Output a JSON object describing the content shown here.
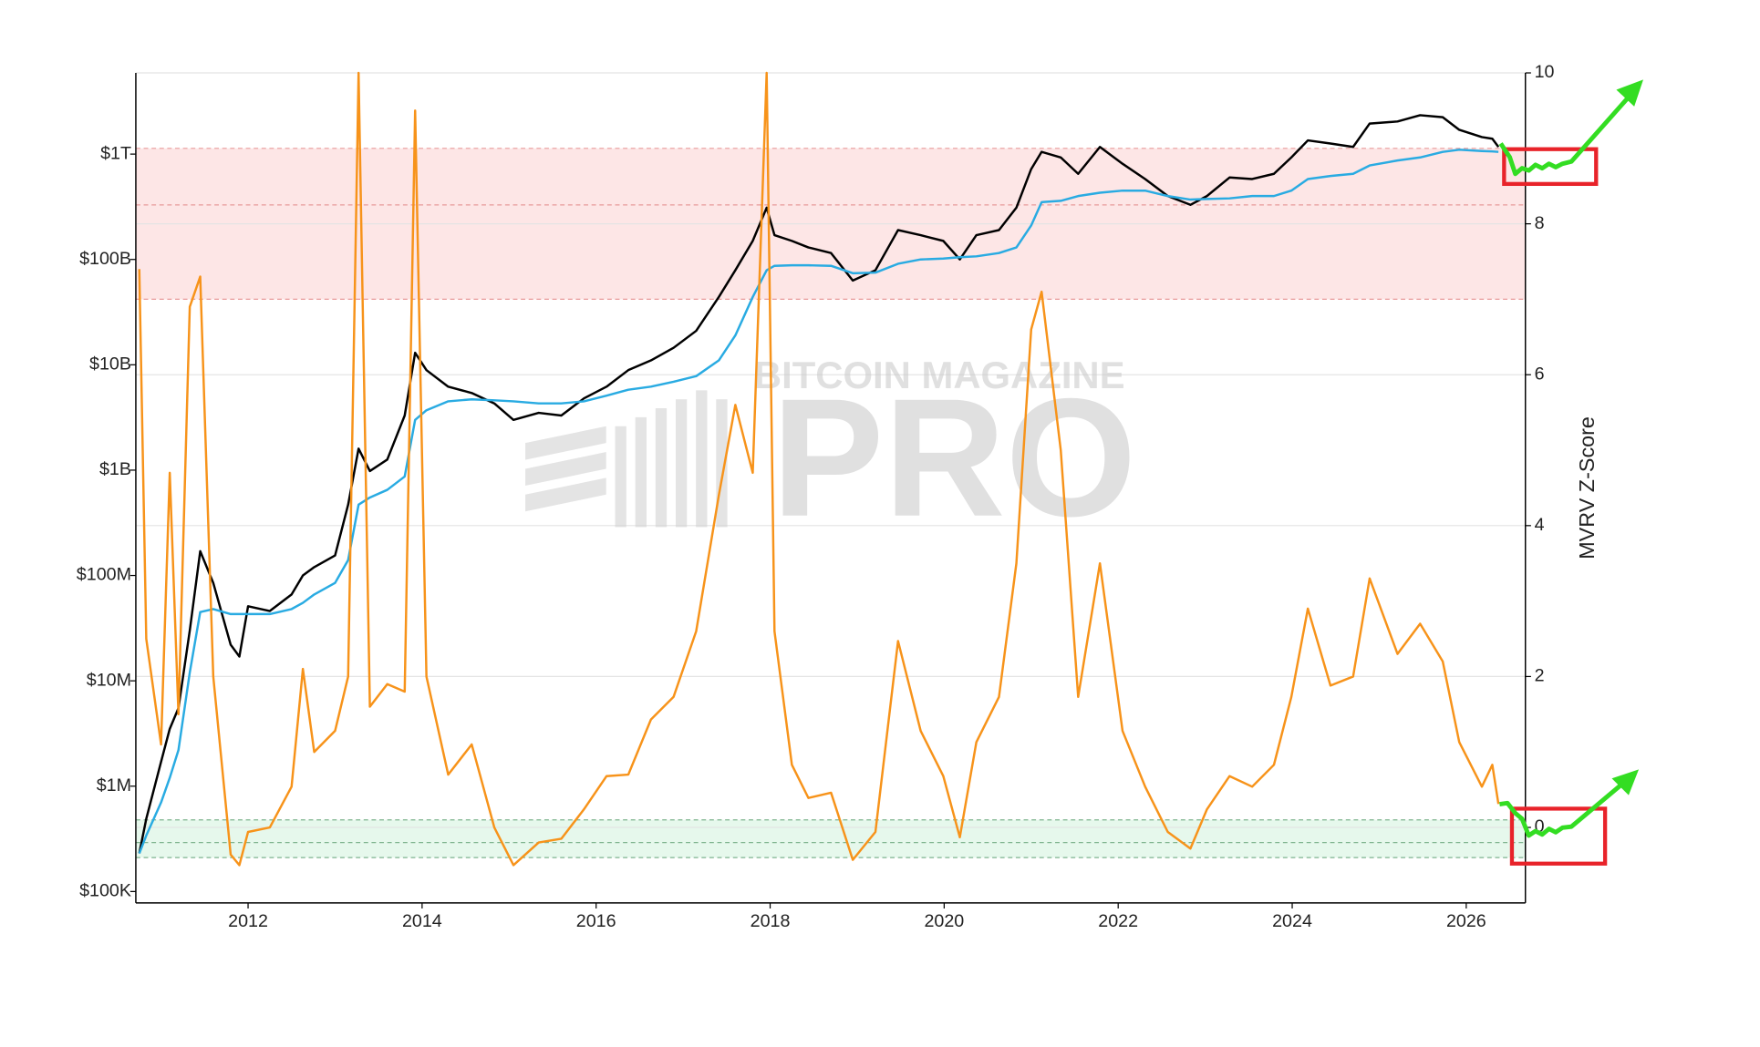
{
  "chart_data": {
    "type": "line",
    "y2_label": "MVRV Z-Score",
    "watermark": [
      "BITCOIN MAGAZINE",
      "PRO"
    ],
    "log_y": true,
    "grid": true,
    "x": [
      2010.75,
      2010.83,
      2011.0,
      2011.1,
      2011.2,
      2011.33,
      2011.45,
      2011.6,
      2011.8,
      2011.9,
      2012.0,
      2012.25,
      2012.5,
      2012.63,
      2012.76,
      2013.0,
      2013.15,
      2013.27,
      2013.4,
      2013.6,
      2013.8,
      2013.92,
      2014.05,
      2014.3,
      2014.57,
      2014.83,
      2015.05,
      2015.34,
      2015.6,
      2015.86,
      2016.12,
      2016.37,
      2016.63,
      2016.89,
      2017.15,
      2017.41,
      2017.6,
      2017.8,
      2017.96,
      2018.05,
      2018.25,
      2018.44,
      2018.7,
      2018.95,
      2019.21,
      2019.47,
      2019.73,
      2019.99,
      2020.18,
      2020.37,
      2020.63,
      2020.83,
      2021.0,
      2021.12,
      2021.34,
      2021.54,
      2021.79,
      2022.05,
      2022.31,
      2022.57,
      2022.83,
      2023.02,
      2023.28,
      2023.54,
      2023.79,
      2023.99,
      2024.18,
      2024.44,
      2024.7,
      2024.89,
      2025.21,
      2025.47,
      2025.73,
      2025.92,
      2026.18,
      2026.3,
      2026.37
    ],
    "series": [
      {
        "color": "#000000",
        "axis": "y",
        "values": [
          230000.0,
          490000.0,
          1700000.0,
          3500000.0,
          5500000.0,
          30000000.0,
          170000000.0,
          85000000.0,
          22000000.0,
          17000000.0,
          51000000.0,
          46000000.0,
          66000000.0,
          100000000.0,
          120000000.0,
          155000000.0,
          470000000.0,
          1600000000.0,
          980000000.0,
          1260000000.0,
          3300000000.0,
          13000000000.0,
          8900000000.0,
          6200000000.0,
          5400000000.0,
          4300000000.0,
          3000000000.0,
          3500000000.0,
          3300000000.0,
          4800000000.0,
          6200000000.0,
          8900000000.0,
          11000000000.0,
          14500000000.0,
          21000000000.0,
          44000000000.0,
          79000000000.0,
          150000000000.0,
          310000000000.0,
          170000000000.0,
          150000000000.0,
          130000000000.0,
          115000000000.0,
          63000000000.0,
          79000000000.0,
          190000000000.0,
          170000000000.0,
          150000000000.0,
          100000000000.0,
          170000000000.0,
          190000000000.0,
          310000000000.0,
          720000000000.0,
          1050000000000.0,
          930000000000.0,
          650000000000.0,
          1170000000000.0,
          810000000000.0,
          580000000000.0,
          400000000000.0,
          330000000000.0,
          400000000000.0,
          600000000000.0,
          580000000000.0,
          650000000000.0,
          930000000000.0,
          1350000000000.0,
          1260000000000.0,
          1170000000000.0,
          1950000000000.0,
          2040000000000.0,
          2340000000000.0,
          2240000000000.0,
          1700000000000.0,
          1450000000000.0,
          1400000000000.0,
          1170000000000.0
        ]
      },
      {
        "color": "#29abe2",
        "axis": "y",
        "values": [
          230000.0,
          340000.0,
          700000.0,
          1200000.0,
          2200000.0,
          12000000.0,
          45000000.0,
          48000000.0,
          43000000.0,
          43000000.0,
          43000000.0,
          43000000.0,
          48000000.0,
          55000000.0,
          66000000.0,
          85000000.0,
          140000000.0,
          470000000.0,
          550000000.0,
          650000000.0,
          870000000.0,
          3000000000.0,
          3700000000.0,
          4500000000.0,
          4700000000.0,
          4600000000.0,
          4500000000.0,
          4300000000.0,
          4300000000.0,
          4500000000.0,
          5100000000.0,
          5800000000.0,
          6200000000.0,
          6900000000.0,
          7800000000.0,
          11000000000.0,
          19000000000.0,
          44000000000.0,
          79000000000.0,
          87000000000.0,
          88000000000.0,
          88000000000.0,
          87000000000.0,
          74000000000.0,
          75000000000.0,
          91000000000.0,
          100000000000.0,
          102000000000.0,
          105000000000.0,
          107000000000.0,
          115000000000.0,
          130000000000.0,
          210000000000.0,
          350000000000.0,
          360000000000.0,
          400000000000.0,
          430000000000.0,
          450000000000.0,
          450000000000.0,
          400000000000.0,
          370000000000.0,
          375000000000.0,
          380000000000.0,
          400000000000.0,
          400000000000.0,
          450000000000.0,
          580000000000.0,
          620000000000.0,
          650000000000.0,
          780000000000.0,
          870000000000.0,
          930000000000.0,
          1050000000000.0,
          1100000000000.0,
          1070000000000.0,
          1060000000000.0,
          1050000000000.0
        ]
      },
      {
        "color": "#f7931a",
        "axis": "y2",
        "values": [
          7.4,
          2.5,
          1.1,
          4.7,
          1.5,
          6.9,
          7.3,
          2.0,
          -0.36,
          -0.5,
          -0.06,
          0.0,
          0.54,
          2.1,
          1.0,
          1.28,
          2.0,
          10.0,
          1.6,
          1.9,
          1.8,
          9.5,
          2.0,
          0.7,
          1.1,
          0.0,
          -0.5,
          -0.2,
          -0.15,
          0.24,
          0.68,
          0.7,
          1.43,
          1.73,
          2.6,
          4.4,
          5.6,
          4.7,
          10.0,
          2.6,
          0.83,
          0.39,
          0.46,
          -0.43,
          -0.06,
          2.47,
          1.28,
          0.68,
          -0.13,
          1.13,
          1.73,
          3.5,
          6.6,
          7.1,
          5.0,
          1.73,
          3.5,
          1.28,
          0.54,
          -0.06,
          -0.28,
          0.24,
          0.68,
          0.54,
          0.83,
          1.73,
          2.9,
          1.88,
          2.0,
          3.3,
          2.3,
          2.7,
          2.2,
          1.13,
          0.54,
          0.83,
          0.31
        ]
      }
    ],
    "xlim": [
      2010.71,
      2026.68
    ],
    "xticks": [
      2012,
      2014,
      2016,
      2018,
      2020,
      2022,
      2024,
      2026
    ],
    "ylim": [
      78000,
      5900000000000.0
    ],
    "yticks": [
      {
        "value": 100000,
        "label": "$100K"
      },
      {
        "value": 1000000,
        "label": "$1M"
      },
      {
        "value": 10000000,
        "label": "$10M"
      },
      {
        "value": 100000000,
        "label": "$100M"
      },
      {
        "value": 1000000000,
        "label": "$1B"
      },
      {
        "value": 10000000000,
        "label": "$10B"
      },
      {
        "value": 100000000000,
        "label": "$100B"
      },
      {
        "value": 1000000000000,
        "label": "$1T"
      }
    ],
    "y2lim": [
      -1,
      10
    ],
    "y2ticks": [
      0,
      2,
      4,
      6,
      8,
      10
    ],
    "bands": [
      {
        "from": 7,
        "to": 9,
        "color": "#fde6e6",
        "line_color": "#e89a9a"
      },
      {
        "from": -0.4,
        "to": 0.1,
        "color": "#e6f8ec",
        "line_color": "#7fb48f"
      }
    ],
    "dashed_lines": [
      9,
      8.25,
      7,
      0.1,
      -0.2,
      -0.4
    ]
  }
}
